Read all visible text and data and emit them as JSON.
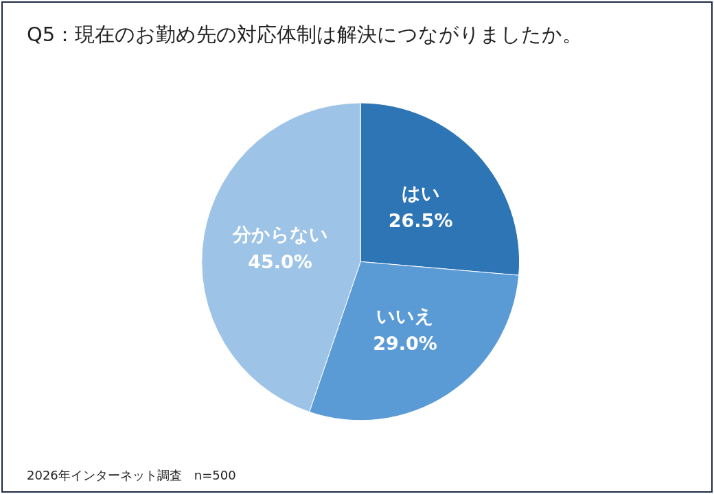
{
  "chart_data": {
    "type": "pie",
    "title": "Q5：現在のお勤め先の対応体制は解決につながりましたか。",
    "categories": [
      "はい",
      "いいえ",
      "分からない"
    ],
    "values": [
      26.5,
      29.0,
      45.0
    ],
    "value_labels": [
      "26.5%",
      "29.0%",
      "45.0%"
    ],
    "colors": [
      "#2e75b6",
      "#5b9bd5",
      "#9dc3e6"
    ],
    "annotations": [
      "2026年インターネット調査　n=500"
    ],
    "legend": false
  }
}
